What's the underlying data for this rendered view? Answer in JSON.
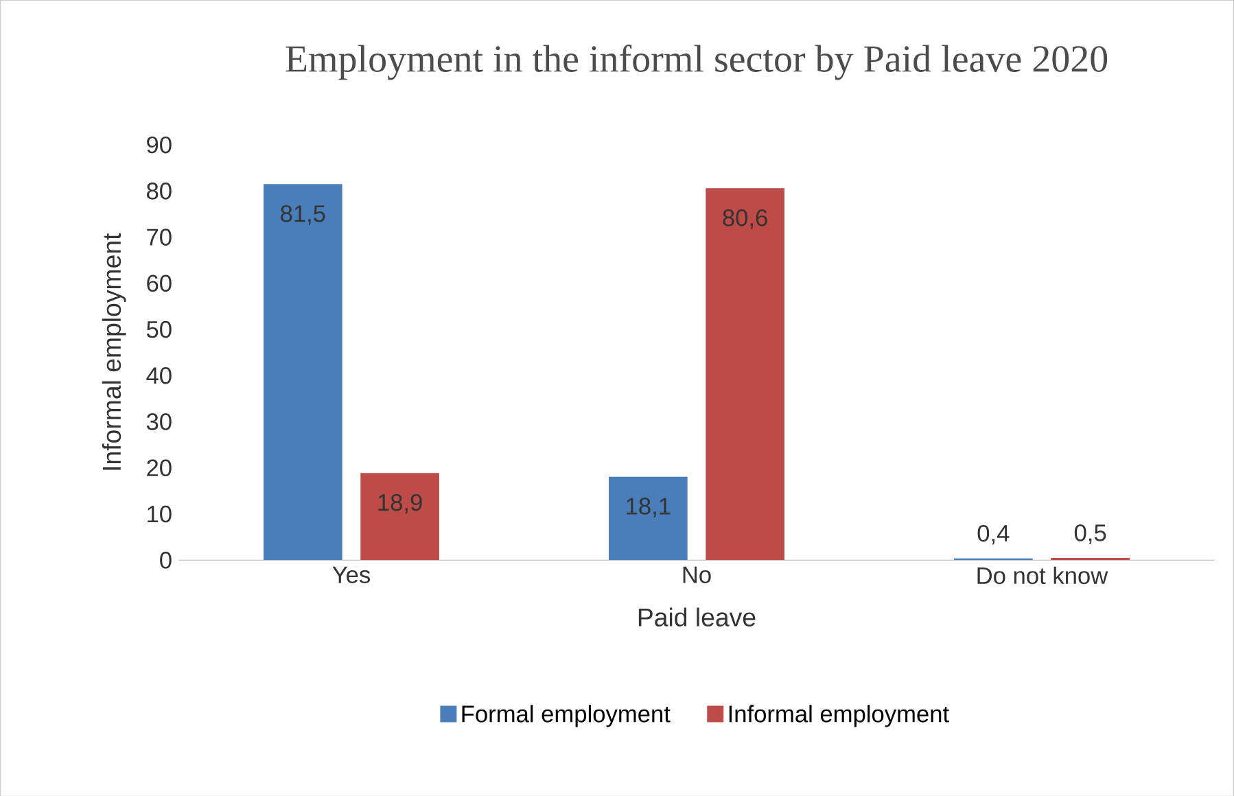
{
  "chart_data": {
    "type": "bar",
    "title": "Employment in the informl sector by Paid leave 2020",
    "xlabel": "Paid leave",
    "ylabel": "Informal employment",
    "categories": [
      "Yes",
      "No",
      "Do not know"
    ],
    "series": [
      {
        "name": "Formal employment",
        "color": "#4a7ebb",
        "values": [
          81.5,
          18.1,
          0.4
        ],
        "value_labels": [
          "81,5",
          "18,1",
          "0,4"
        ]
      },
      {
        "name": "Informal employment",
        "color": "#be4b48",
        "values": [
          18.9,
          80.6,
          0.5
        ],
        "value_labels": [
          "18,9",
          "80,6",
          "0,5"
        ]
      }
    ],
    "ylim": [
      0,
      90
    ],
    "yticks": [
      0,
      10,
      20,
      30,
      40,
      50,
      60,
      70,
      80,
      90
    ],
    "legend": "bottom"
  }
}
